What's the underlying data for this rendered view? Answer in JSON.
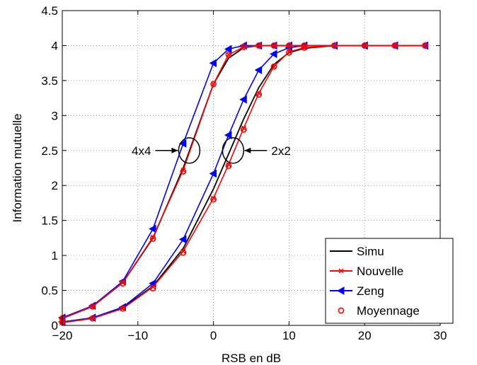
{
  "chart_data": {
    "type": "line",
    "title": "",
    "xlabel": "RSB en dB",
    "ylabel": "Information mutuelle",
    "xlim": [
      -20,
      30
    ],
    "ylim": [
      0,
      4.5
    ],
    "xticks": [
      -20,
      -10,
      0,
      10,
      20,
      30
    ],
    "xtick_labels": [
      "−20",
      "−10",
      "0",
      "10",
      "20",
      "30"
    ],
    "yticks": [
      0,
      0.5,
      1,
      1.5,
      2,
      2.5,
      3,
      3.5,
      4,
      4.5
    ],
    "ytick_labels": [
      "0",
      "0.5",
      "1",
      "1.5",
      "2",
      "2.5",
      "3",
      "3.5",
      "4",
      "4.5"
    ],
    "grid": true,
    "legend_position": "bottom-right",
    "x": [
      -20,
      -16,
      -12,
      -8,
      -4,
      0,
      2,
      4,
      6,
      8,
      10,
      12,
      16,
      20,
      24,
      28
    ],
    "series": [
      {
        "name": "Simu",
        "color": "#000000",
        "marker": "none",
        "group": "4x4",
        "values": [
          0.1,
          0.27,
          0.61,
          1.25,
          2.25,
          3.45,
          3.82,
          3.97,
          4.0,
          4.0,
          4.0,
          4.0,
          4.0,
          4.0,
          4.0,
          4.0
        ]
      },
      {
        "name": "Nouvelle",
        "color": "#ff0000",
        "marker": "x",
        "group": "4x4",
        "values": [
          0.1,
          0.27,
          0.61,
          1.26,
          2.22,
          3.45,
          3.87,
          3.98,
          4.0,
          4.0,
          4.0,
          4.0,
          4.0,
          4.0,
          4.0,
          4.0
        ]
      },
      {
        "name": "Zeng",
        "color": "#0000ff",
        "marker": "triangle-left",
        "group": "4x4",
        "values": [
          0.11,
          0.28,
          0.63,
          1.38,
          2.6,
          3.75,
          3.95,
          4.0,
          4.0,
          4.0,
          4.0,
          4.0,
          4.0,
          4.0,
          4.0,
          4.0
        ]
      },
      {
        "name": "Moyennage",
        "color": "#ff0000",
        "marker": "circle",
        "group": "4x4",
        "values": [
          0.1,
          0.27,
          0.6,
          1.24,
          2.2,
          3.45,
          3.87,
          3.98,
          4.0,
          4.0,
          4.0,
          4.0,
          4.0,
          4.0,
          4.0,
          4.0
        ]
      },
      {
        "name": "Simu",
        "color": "#000000",
        "marker": "none",
        "group": "2x2",
        "values": [
          0.04,
          0.1,
          0.25,
          0.56,
          1.1,
          1.95,
          2.45,
          2.95,
          3.4,
          3.73,
          3.9,
          3.96,
          4.0,
          4.0,
          4.0,
          4.0
        ]
      },
      {
        "name": "Nouvelle",
        "color": "#ff0000",
        "marker": "x",
        "group": "2x2",
        "values": [
          0.04,
          0.1,
          0.24,
          0.55,
          1.06,
          1.82,
          2.3,
          2.82,
          3.32,
          3.7,
          3.91,
          3.97,
          4.0,
          4.0,
          4.0,
          4.0
        ]
      },
      {
        "name": "Zeng",
        "color": "#0000ff",
        "marker": "triangle-left",
        "group": "2x2",
        "values": [
          0.05,
          0.11,
          0.26,
          0.6,
          1.23,
          2.17,
          2.72,
          3.23,
          3.65,
          3.88,
          3.97,
          4.0,
          4.0,
          4.0,
          4.0,
          4.0
        ]
      },
      {
        "name": "Moyennage",
        "color": "#ff0000",
        "marker": "circle",
        "group": "2x2",
        "values": [
          0.04,
          0.1,
          0.24,
          0.53,
          1.04,
          1.8,
          2.28,
          2.8,
          3.3,
          3.7,
          3.9,
          3.97,
          4.0,
          4.0,
          4.0,
          4.0
        ]
      }
    ],
    "legend": [
      {
        "label": "Simu",
        "color": "#000000",
        "marker": "none"
      },
      {
        "label": "Nouvelle",
        "color": "#ff0000",
        "marker": "x"
      },
      {
        "label": "Zeng",
        "color": "#0000ff",
        "marker": "triangle-left"
      },
      {
        "label": "Moyennage",
        "color": "#ff0000",
        "marker": "circle"
      }
    ],
    "annotations": [
      {
        "text": "4x4",
        "x": -3.2,
        "y": 2.5,
        "side": "left"
      },
      {
        "text": "2x2",
        "x": 2.6,
        "y": 2.5,
        "side": "right"
      }
    ]
  }
}
